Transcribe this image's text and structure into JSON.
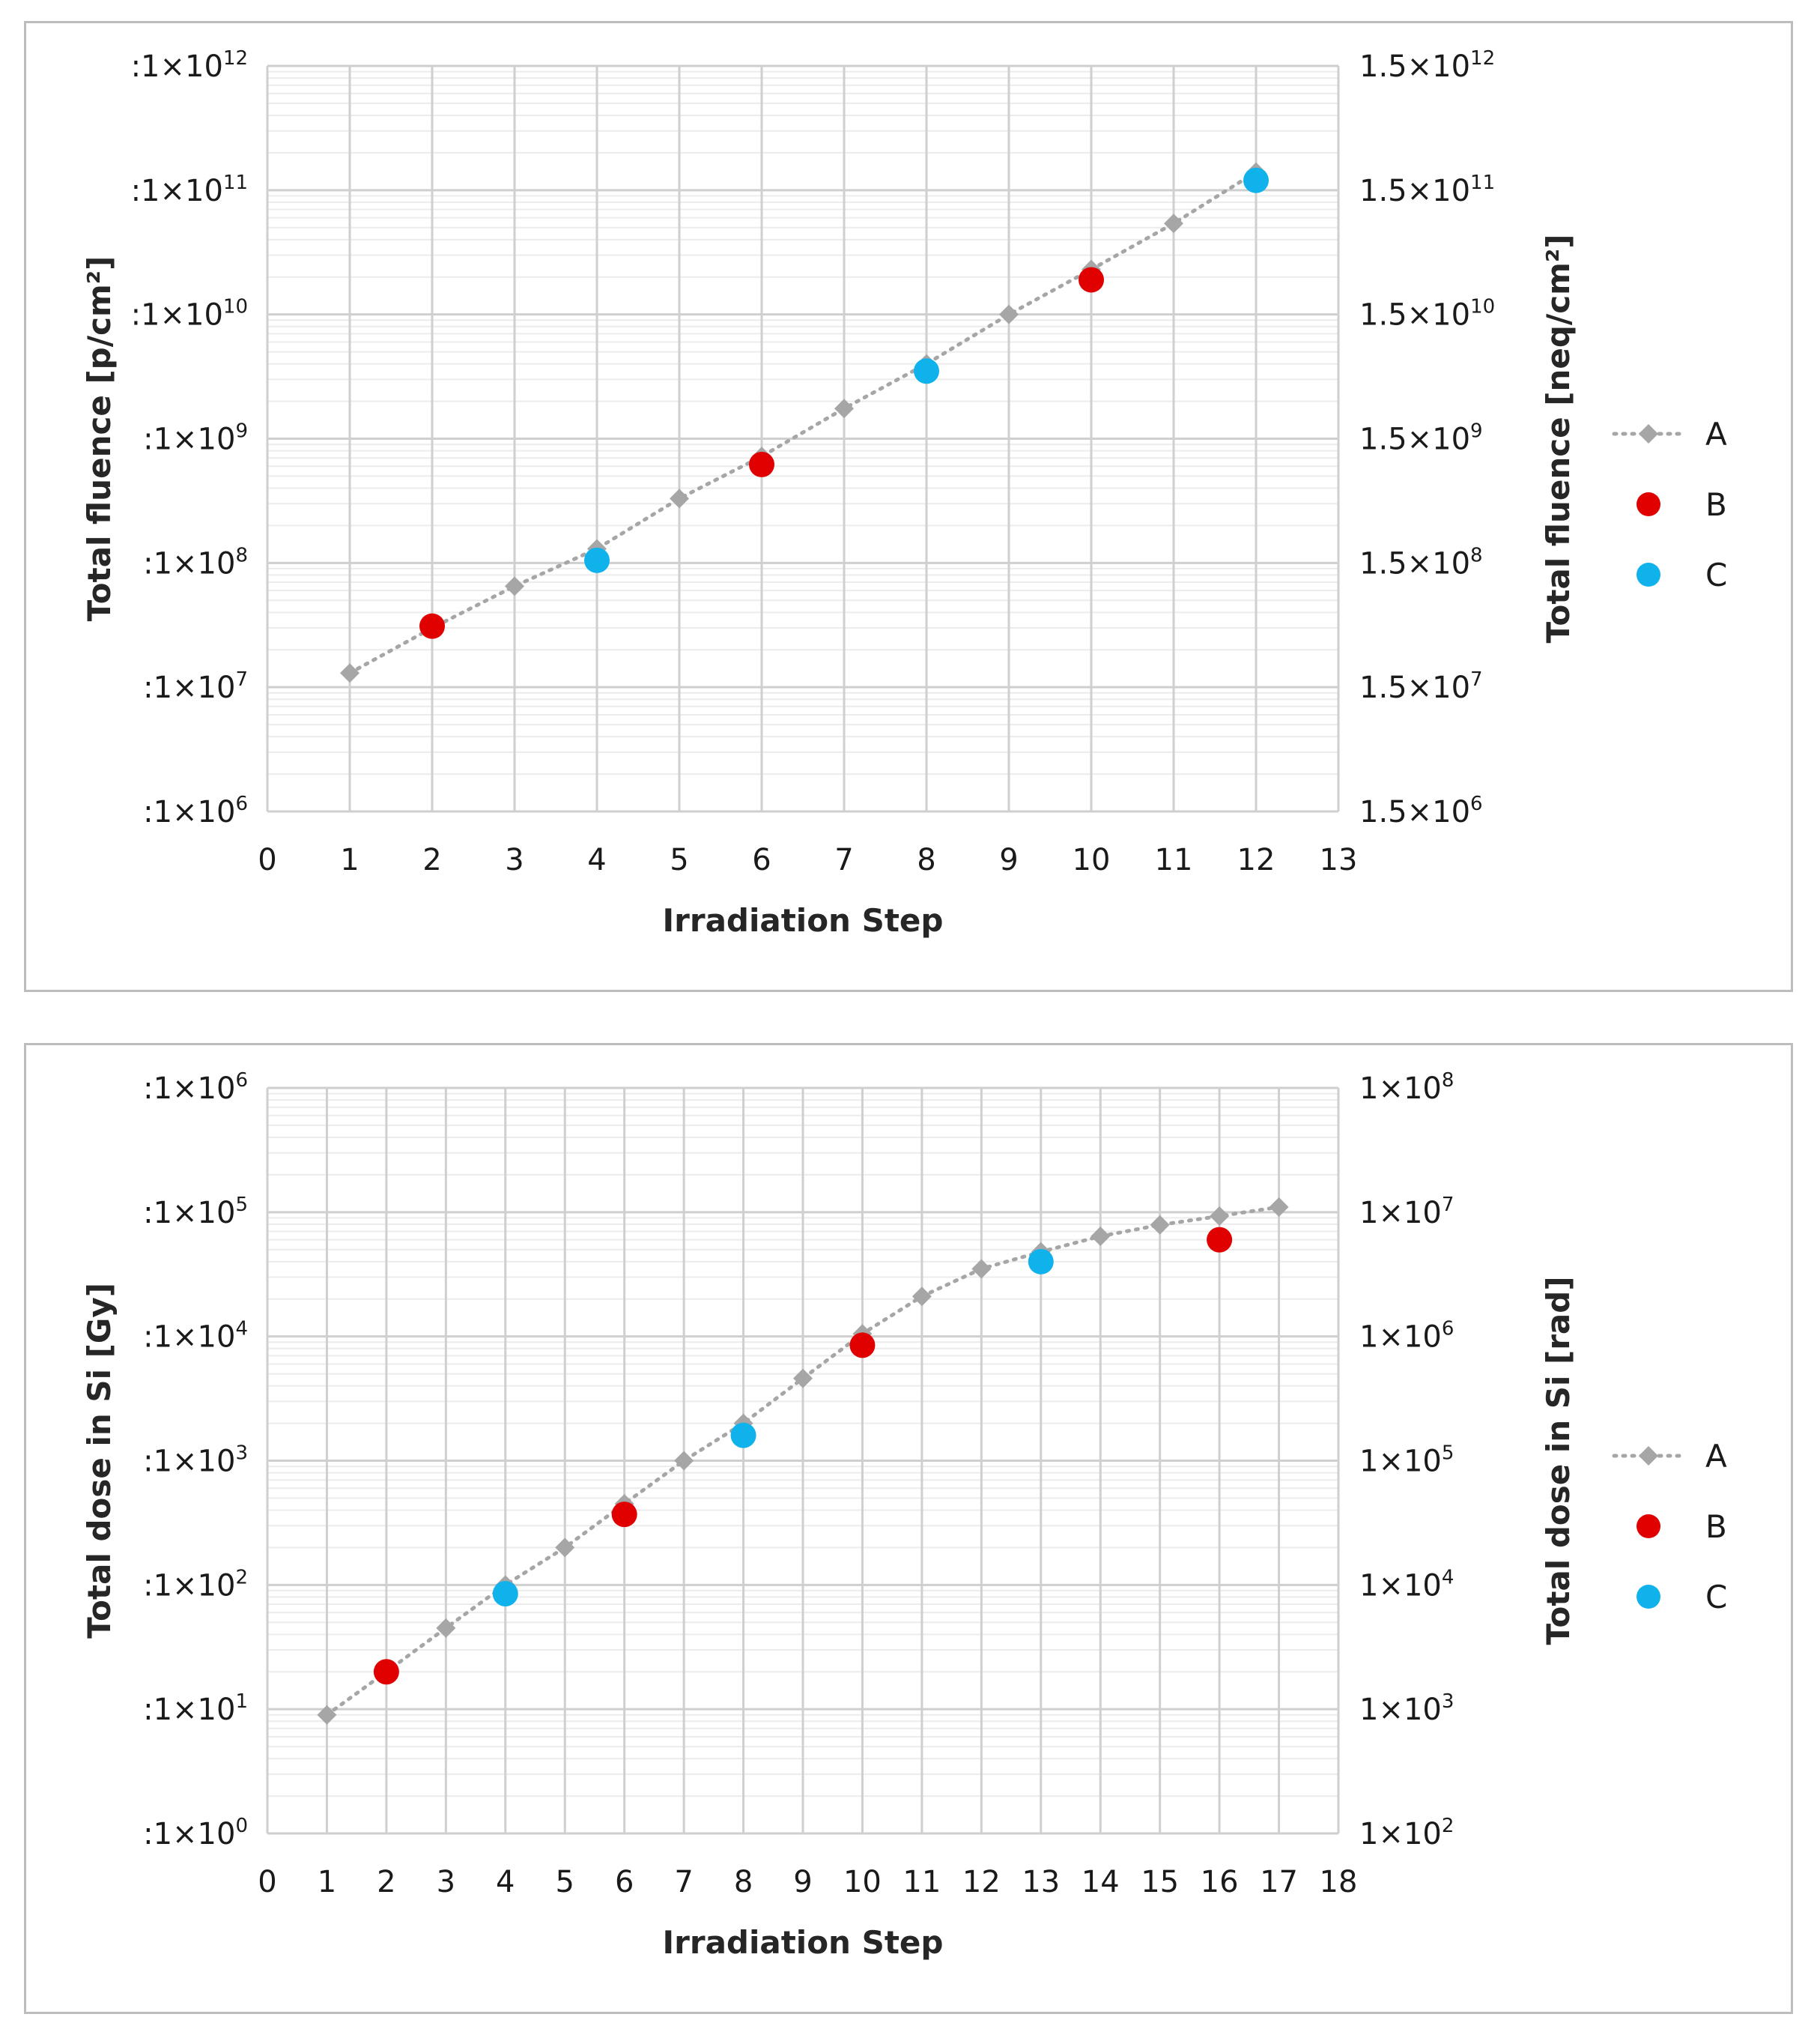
{
  "colors": {
    "series_a": "#a6a6a6",
    "series_b": "#e00000",
    "series_c": "#10b2ec",
    "grid_major": "#cfcfcf",
    "grid_minor": "#ececec"
  },
  "chart_data": [
    {
      "type": "scatter",
      "title": "",
      "xlabel": "Irradiation Step",
      "ylabel": "Total fluence [p/cm²]",
      "ylabel_right": "Total fluence [neq/cm²]",
      "xlim": [
        0,
        13
      ],
      "x_ticks": [
        "0",
        "1",
        "2",
        "3",
        "4",
        "5",
        "6",
        "7",
        "8",
        "9",
        "10",
        "11",
        "12",
        "13"
      ],
      "y_scale": "log",
      "ylim": [
        1000000,
        1000000000000
      ],
      "y_ticks_left": [
        {
          "base": ":1×10",
          "exp": "12"
        },
        {
          "base": ":1×10",
          "exp": "11"
        },
        {
          "base": ":1×10",
          "exp": "10"
        },
        {
          "base": ":1×10",
          "exp": "9"
        },
        {
          "base": ":1×10",
          "exp": "8"
        },
        {
          "base": ":1×10",
          "exp": "7"
        },
        {
          "base": ":1×10",
          "exp": "6"
        }
      ],
      "y_ticks_right": [
        {
          "base": "1.5×10",
          "exp": "12"
        },
        {
          "base": "1.5×10",
          "exp": "11"
        },
        {
          "base": "1.5×10",
          "exp": "10"
        },
        {
          "base": "1.5×10",
          "exp": "9"
        },
        {
          "base": "1.5×10",
          "exp": "8"
        },
        {
          "base": "1.5×10",
          "exp": "7"
        },
        {
          "base": "1.5×10",
          "exp": "6"
        }
      ],
      "legend": [
        "A",
        "B",
        "C"
      ],
      "legend_position": "right",
      "series": [
        {
          "name": "A",
          "style": "dotted-line-diamond",
          "x": [
            1,
            2,
            3,
            4,
            5,
            6,
            7,
            8,
            9,
            10,
            11,
            12
          ],
          "y": [
            13000000,
            30000000,
            65000000,
            130000000,
            330000000,
            720000000,
            1750000000,
            4000000000,
            10000000000,
            23000000000,
            54000000000,
            140000000000
          ]
        },
        {
          "name": "B",
          "style": "dot",
          "x": [
            2,
            6,
            10
          ],
          "y": [
            31000000,
            620000000,
            19000000000
          ]
        },
        {
          "name": "C",
          "style": "dot",
          "x": [
            4,
            8,
            12
          ],
          "y": [
            105000000,
            3500000000,
            120000000000
          ]
        }
      ]
    },
    {
      "type": "scatter",
      "title": "",
      "xlabel": "Irradiation Step",
      "ylabel": "Total dose in Si [Gy]",
      "ylabel_right": "Total dose in Si [rad]",
      "xlim": [
        0,
        18
      ],
      "x_ticks": [
        "0",
        "1",
        "2",
        "3",
        "4",
        "5",
        "6",
        "7",
        "8",
        "9",
        "10",
        "11",
        "12",
        "13",
        "14",
        "15",
        "16",
        "17",
        "18"
      ],
      "y_scale": "log",
      "ylim": [
        1,
        1000000
      ],
      "y_ticks_left": [
        {
          "base": ":1×10",
          "exp": "6"
        },
        {
          "base": ":1×10",
          "exp": "5"
        },
        {
          "base": ":1×10",
          "exp": "4"
        },
        {
          "base": ":1×10",
          "exp": "3"
        },
        {
          "base": ":1×10",
          "exp": "2"
        },
        {
          "base": ":1×10",
          "exp": "1"
        },
        {
          "base": ":1×10",
          "exp": "0"
        }
      ],
      "y_ticks_right": [
        {
          "base": "1×10",
          "exp": "8"
        },
        {
          "base": "1×10",
          "exp": "7"
        },
        {
          "base": "1×10",
          "exp": "6"
        },
        {
          "base": "1×10",
          "exp": "5"
        },
        {
          "base": "1×10",
          "exp": "4"
        },
        {
          "base": "1×10",
          "exp": "3"
        },
        {
          "base": "1×10",
          "exp": "2"
        }
      ],
      "legend": [
        "A",
        "B",
        "C"
      ],
      "legend_position": "right",
      "series": [
        {
          "name": "A",
          "style": "dotted-line-diamond",
          "x": [
            1,
            2,
            3,
            4,
            5,
            6,
            7,
            8,
            9,
            10,
            11,
            12,
            13,
            14,
            15,
            16,
            17
          ],
          "y": [
            9,
            20,
            45,
            100,
            200,
            450,
            1000,
            2000,
            4600,
            10500,
            21000,
            35000,
            48000,
            64000,
            79000,
            93000,
            110000
          ]
        },
        {
          "name": "B",
          "style": "dot",
          "x": [
            2,
            6,
            10,
            16
          ],
          "y": [
            20,
            370,
            8500,
            60000
          ]
        },
        {
          "name": "C",
          "style": "dot",
          "x": [
            4,
            8,
            13
          ],
          "y": [
            85,
            1600,
            40000
          ]
        }
      ]
    }
  ]
}
